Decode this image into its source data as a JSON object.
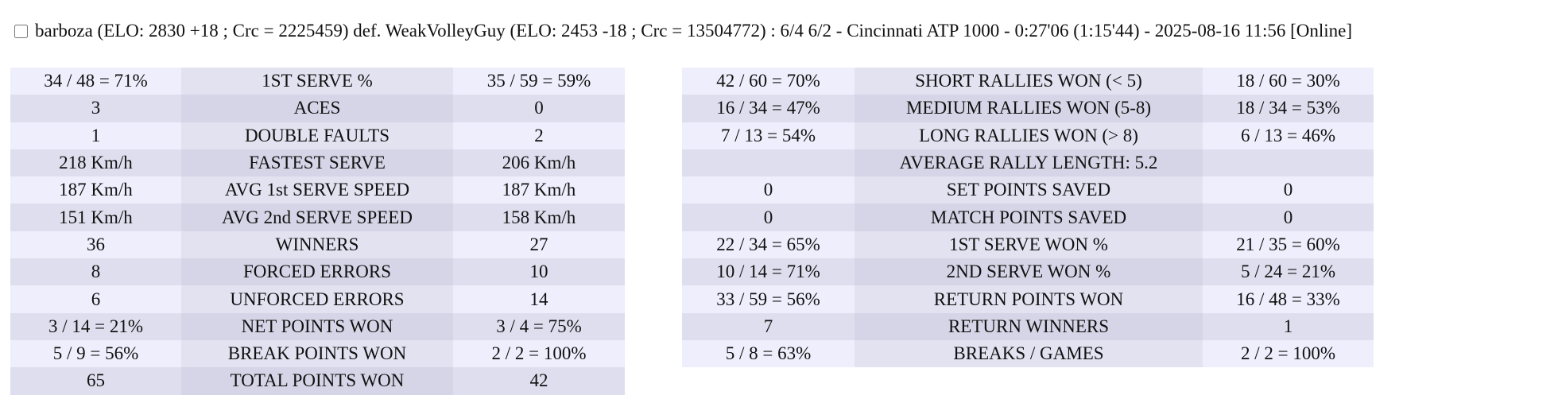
{
  "header": {
    "text": "barboza (ELO: 2830 +18 ; Crc = 2225459) def. WeakVolleyGuy (ELO: 2453 -18 ; Crc = 13504772) : 6/4 6/2 - Cincinnati ATP 1000 - 0:27'06 (1:15'44) - 2025-08-16 11:56 [Online]"
  },
  "left_table": {
    "rows": [
      [
        "34 / 48 = 71%",
        "1ST SERVE %",
        "35 / 59 = 59%"
      ],
      [
        "3",
        "ACES",
        "0"
      ],
      [
        "1",
        "DOUBLE FAULTS",
        "2"
      ],
      [
        "218 Km/h",
        "FASTEST SERVE",
        "206 Km/h"
      ],
      [
        "187 Km/h",
        "AVG 1st SERVE SPEED",
        "187 Km/h"
      ],
      [
        "151 Km/h",
        "AVG 2nd SERVE SPEED",
        "158 Km/h"
      ],
      [
        "36",
        "WINNERS",
        "27"
      ],
      [
        "8",
        "FORCED ERRORS",
        "10"
      ],
      [
        "6",
        "UNFORCED ERRORS",
        "14"
      ],
      [
        "3 / 14 = 21%",
        "NET POINTS WON",
        "3 / 4 = 75%"
      ],
      [
        "5 / 9 = 56%",
        "BREAK POINTS WON",
        "2 / 2 = 100%"
      ],
      [
        "65",
        "TOTAL POINTS WON",
        "42"
      ]
    ]
  },
  "right_table": {
    "rows": [
      [
        "42 / 60 = 70%",
        "SHORT RALLIES WON (< 5)",
        "18 / 60 = 30%"
      ],
      [
        "16 / 34 = 47%",
        "MEDIUM RALLIES WON (5-8)",
        "18 / 34 = 53%"
      ],
      [
        "7 / 13 = 54%",
        "LONG RALLIES WON (> 8)",
        "6 / 13 = 46%"
      ],
      [
        "AVERAGE RALLY LENGTH: 5.2"
      ],
      [
        "0",
        "SET POINTS SAVED",
        "0"
      ],
      [
        "0",
        "MATCH POINTS SAVED",
        "0"
      ],
      [
        "22 / 34 = 65%",
        "1ST SERVE WON %",
        "21 / 35 = 60%"
      ],
      [
        "10 / 14 = 71%",
        "2ND SERVE WON %",
        "5 / 24 = 21%"
      ],
      [
        "33 / 59 = 56%",
        "RETURN POINTS WON",
        "16 / 48 = 33%"
      ],
      [
        "7",
        "RETURN WINNERS",
        "1"
      ],
      [
        "5 / 8 = 63%",
        "BREAKS / GAMES",
        "2 / 2 = 100%"
      ]
    ]
  }
}
